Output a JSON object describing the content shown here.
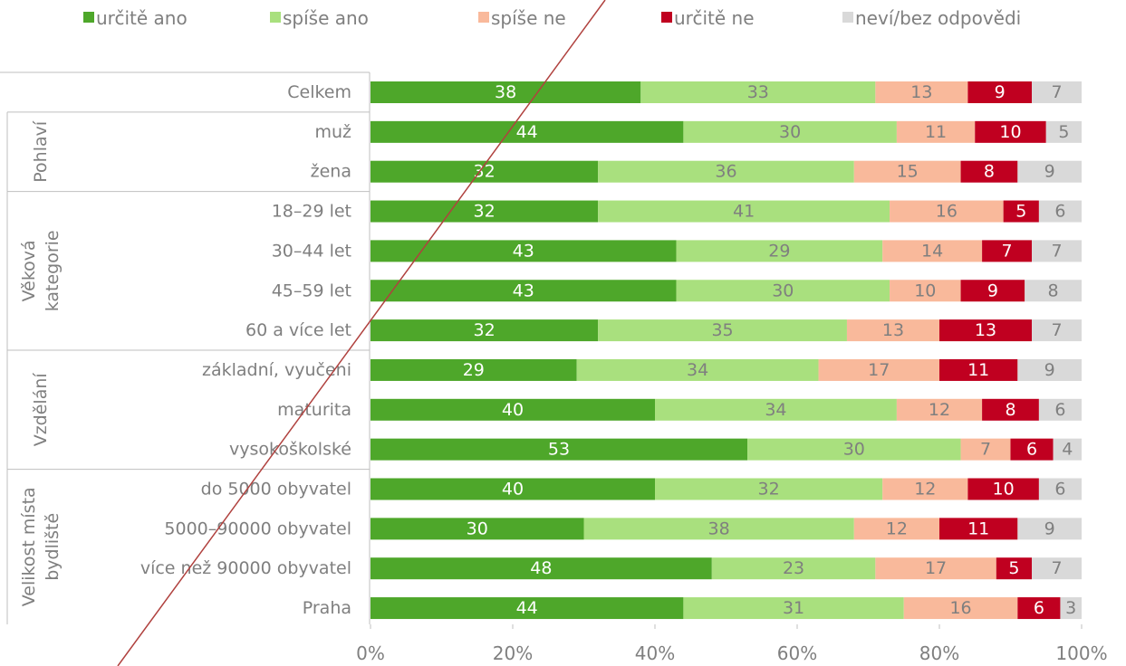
{
  "chart_data": {
    "type": "stacked_barh",
    "category_groups": [
      {
        "label": null,
        "categories": [
          "Celkem"
        ]
      },
      {
        "label": [
          "Pohlaví"
        ],
        "categories": [
          "muž",
          "žena"
        ]
      },
      {
        "label": [
          "Věková",
          "kategorie"
        ],
        "categories": [
          "18–29 let",
          "30–44 let",
          "45–59 let",
          "60 a více let"
        ]
      },
      {
        "label": [
          "Vzdělání"
        ],
        "categories": [
          "základní, vyučeni",
          "maturita",
          "vysokoškolské"
        ]
      },
      {
        "label": [
          "Velikost místa",
          "bydliště"
        ],
        "categories": [
          "do 5000 obyvatel",
          "5000–90000 obyvatel",
          "více než 90000 obyvatel",
          "Praha"
        ]
      }
    ],
    "series": [
      {
        "name": "určitě ano",
        "color": "#4ea72a",
        "label_color": "#ffffff",
        "values": [
          38,
          44,
          32,
          32,
          43,
          43,
          32,
          29,
          40,
          53,
          40,
          30,
          48,
          44
        ]
      },
      {
        "name": "spíše ano",
        "color": "#a9e07e",
        "label_color": "#7f7f7f",
        "values": [
          33,
          30,
          36,
          41,
          29,
          30,
          35,
          34,
          34,
          30,
          32,
          38,
          23,
          31
        ]
      },
      {
        "name": "spíše ne",
        "color": "#f9b99b",
        "label_color": "#7f7f7f",
        "values": [
          13,
          11,
          15,
          16,
          14,
          10,
          13,
          17,
          12,
          7,
          12,
          12,
          17,
          16
        ]
      },
      {
        "name": "určitě ne",
        "color": "#c00020",
        "label_color": "#ffffff",
        "values": [
          9,
          10,
          8,
          5,
          7,
          9,
          13,
          11,
          8,
          6,
          10,
          11,
          5,
          6
        ]
      },
      {
        "name": "neví/bez odpovědi",
        "color": "#d9d9d9",
        "label_color": "#7f7f7f",
        "values": [
          7,
          5,
          9,
          6,
          7,
          8,
          7,
          9,
          6,
          4,
          6,
          9,
          7,
          3
        ]
      }
    ],
    "xlim": [
      0,
      100
    ],
    "xticks": [
      {
        "value": 0,
        "label": "0%"
      },
      {
        "value": 20,
        "label": "20%"
      },
      {
        "value": 40,
        "label": "40%"
      },
      {
        "value": 60,
        "label": "60%"
      },
      {
        "value": 80,
        "label": "80%"
      },
      {
        "value": 100,
        "label": "100%"
      }
    ],
    "legend": "top"
  }
}
